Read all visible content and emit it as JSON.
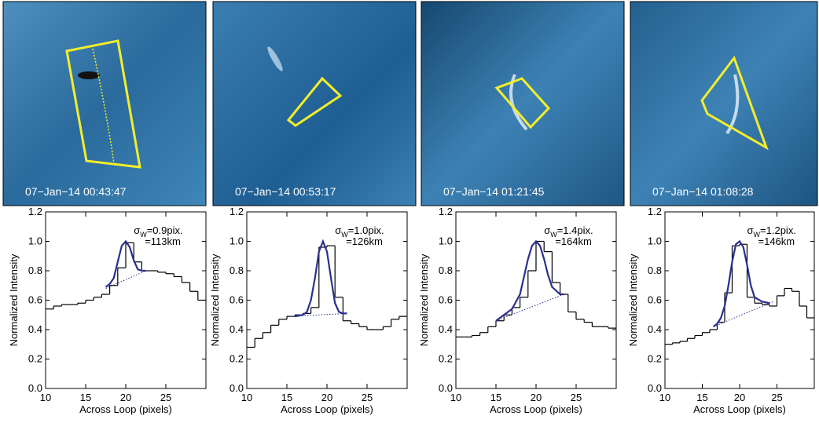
{
  "chart_data": [
    {
      "type": "step",
      "image_label": "07−Jan−14 00:43:47",
      "xlabel": "Across Loop (pixels)",
      "ylabel": "Normalized Intensity",
      "annotation": {
        "symbol": "σ",
        "subscript": "W",
        "line1": "=0.9pix.",
        "line2": "=113km"
      },
      "xlim": [
        10,
        30
      ],
      "xticks": [
        10,
        15,
        20,
        25
      ],
      "ylim": [
        0,
        1.2
      ],
      "yticks": [
        {
          "value": 0,
          "label": "0.0"
        },
        {
          "value": 0.2,
          "label": "0.2"
        },
        {
          "value": 0.4,
          "label": "0.4"
        },
        {
          "value": 0.6,
          "label": "0.6"
        },
        {
          "value": 0.8,
          "label": "0.8"
        },
        {
          "value": 1,
          "label": "1.0"
        },
        {
          "value": 1.2,
          "label": "1.2"
        }
      ],
      "x": [
        10,
        11,
        12,
        13,
        14,
        15,
        16,
        17,
        18,
        19,
        20,
        21,
        22,
        23,
        24,
        25,
        26,
        27,
        28,
        29
      ],
      "values": [
        0.54,
        0.56,
        0.57,
        0.57,
        0.58,
        0.6,
        0.62,
        0.64,
        0.7,
        0.82,
        0.99,
        0.86,
        0.8,
        0.8,
        0.79,
        0.78,
        0.76,
        0.72,
        0.66,
        0.6
      ],
      "fit": {
        "color": "#2b2f8f",
        "x": [
          17.5,
          18,
          18.5,
          19,
          19.5,
          20,
          20.5,
          21,
          21.5,
          22,
          22.5
        ],
        "values": [
          0.69,
          0.71,
          0.75,
          0.86,
          0.97,
          1.0,
          0.96,
          0.87,
          0.81,
          0.8,
          0.8
        ]
      },
      "background": {
        "color": "#2b2f8f",
        "x": [
          17.5,
          22.5
        ],
        "values": [
          0.68,
          0.8
        ]
      }
    },
    {
      "type": "step",
      "image_label": "07−Jan−14 00:53:17",
      "xlabel": "Across Loop (pixels)",
      "ylabel": "Normalized Intensity",
      "annotation": {
        "symbol": "σ",
        "subscript": "W",
        "line1": "=1.0pix.",
        "line2": "=126km"
      },
      "xlim": [
        10,
        30
      ],
      "xticks": [
        10,
        15,
        20,
        25
      ],
      "ylim": [
        0,
        1.2
      ],
      "yticks": [
        {
          "value": 0,
          "label": "0.0"
        },
        {
          "value": 0.2,
          "label": "0.2"
        },
        {
          "value": 0.4,
          "label": "0.4"
        },
        {
          "value": 0.6,
          "label": "0.6"
        },
        {
          "value": 0.8,
          "label": "0.8"
        },
        {
          "value": 1,
          "label": "1.0"
        },
        {
          "value": 1.2,
          "label": "1.2"
        }
      ],
      "x": [
        10,
        11,
        12,
        13,
        14,
        15,
        16,
        17,
        18,
        19,
        20,
        21,
        22,
        23,
        24,
        25,
        26,
        27,
        28,
        29
      ],
      "values": [
        0.28,
        0.34,
        0.38,
        0.43,
        0.47,
        0.49,
        0.5,
        0.51,
        0.55,
        0.96,
        0.97,
        0.62,
        0.46,
        0.44,
        0.42,
        0.4,
        0.4,
        0.42,
        0.47,
        0.49
      ],
      "fit": {
        "color": "#2b2f8f",
        "x": [
          16,
          17,
          17.5,
          18,
          18.5,
          19,
          19.5,
          20,
          20.5,
          21,
          21.5,
          22,
          22.5
        ],
        "values": [
          0.49,
          0.5,
          0.52,
          0.6,
          0.75,
          0.93,
          1.0,
          0.93,
          0.75,
          0.58,
          0.52,
          0.51,
          0.51
        ]
      },
      "background": {
        "color": "#2b2f8f",
        "x": [
          15.5,
          22.5
        ],
        "values": [
          0.49,
          0.51
        ]
      }
    },
    {
      "type": "step",
      "image_label": "07−Jan−14 01:21:45",
      "xlabel": "Across Loop (pixels)",
      "ylabel": "Normalized Intensity",
      "annotation": {
        "symbol": "σ",
        "subscript": "W",
        "line1": "=1.4pix.",
        "line2": "=164km"
      },
      "xlim": [
        10,
        30
      ],
      "xticks": [
        10,
        15,
        20,
        25
      ],
      "ylim": [
        0,
        1.2
      ],
      "yticks": [
        {
          "value": 0,
          "label": "0.0"
        },
        {
          "value": 0.2,
          "label": "0.2"
        },
        {
          "value": 0.4,
          "label": "0.4"
        },
        {
          "value": 0.6,
          "label": "0.6"
        },
        {
          "value": 0.8,
          "label": "0.8"
        },
        {
          "value": 1,
          "label": "1.0"
        },
        {
          "value": 1.2,
          "label": "1.2"
        }
      ],
      "x": [
        10,
        11,
        12,
        13,
        14,
        15,
        16,
        17,
        18,
        19,
        20,
        21,
        22,
        23,
        24,
        25,
        26,
        27,
        28,
        29
      ],
      "values": [
        0.35,
        0.35,
        0.36,
        0.38,
        0.42,
        0.46,
        0.5,
        0.55,
        0.62,
        0.8,
        1.0,
        0.93,
        0.72,
        0.64,
        0.52,
        0.47,
        0.45,
        0.42,
        0.42,
        0.41
      ],
      "fit": {
        "color": "#2b2f8f",
        "x": [
          15,
          16,
          17,
          18,
          18.5,
          19,
          19.5,
          20,
          20.5,
          21,
          21.5,
          22,
          23,
          23.5
        ],
        "values": [
          0.46,
          0.5,
          0.54,
          0.64,
          0.76,
          0.88,
          0.97,
          1.0,
          0.97,
          0.88,
          0.77,
          0.69,
          0.64,
          0.64
        ]
      },
      "background": {
        "color": "#2b2f8f",
        "x": [
          15,
          23.5
        ],
        "values": [
          0.46,
          0.64
        ]
      }
    },
    {
      "type": "step",
      "image_label": "07−Jan−14 01:08:28",
      "xlabel": "Across Loop (pixels)",
      "ylabel": "Normalized Intensity",
      "annotation": {
        "symbol": "σ",
        "subscript": "W",
        "line1": "=1.2pix.",
        "line2": "=146km"
      },
      "xlim": [
        10,
        30
      ],
      "xticks": [
        10,
        15,
        20,
        25
      ],
      "ylim": [
        0,
        1.2
      ],
      "yticks": [
        {
          "value": 0,
          "label": "0.0"
        },
        {
          "value": 0.2,
          "label": "0.2"
        },
        {
          "value": 0.4,
          "label": "0.4"
        },
        {
          "value": 0.6,
          "label": "0.6"
        },
        {
          "value": 0.8,
          "label": "0.8"
        },
        {
          "value": 1,
          "label": "1.0"
        },
        {
          "value": 1.2,
          "label": "1.2"
        }
      ],
      "x": [
        10,
        11,
        12,
        13,
        14,
        15,
        16,
        17,
        18,
        19,
        20,
        21,
        22,
        23,
        24,
        25,
        26,
        27,
        28,
        29
      ],
      "values": [
        0.3,
        0.31,
        0.32,
        0.34,
        0.36,
        0.38,
        0.4,
        0.45,
        0.65,
        0.97,
        0.98,
        0.62,
        0.58,
        0.57,
        0.56,
        0.63,
        0.68,
        0.66,
        0.56,
        0.48
      ],
      "fit": {
        "color": "#2b2f8f",
        "x": [
          16.5,
          17,
          17.5,
          18,
          18.5,
          19,
          19.5,
          20,
          20.5,
          21,
          21.5,
          22,
          23,
          24
        ],
        "values": [
          0.42,
          0.44,
          0.48,
          0.56,
          0.7,
          0.86,
          0.98,
          1.0,
          0.96,
          0.84,
          0.7,
          0.62,
          0.59,
          0.58
        ]
      },
      "background": {
        "color": "#2b2f8f",
        "x": [
          16.5,
          24.5
        ],
        "values": [
          0.42,
          0.59
        ]
      }
    }
  ]
}
